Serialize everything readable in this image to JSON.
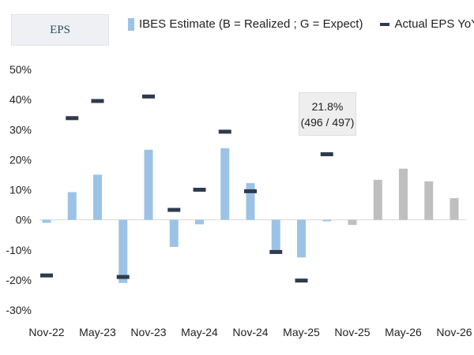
{
  "header": {
    "title": "EPS"
  },
  "legend": {
    "bar_label": "IBES Estimate (B = Realized ; G = Expect)",
    "dash_label": "Actual EPS YoY"
  },
  "annotation": {
    "line1": "21.8%",
    "line2": "(496 / 497)"
  },
  "colors": {
    "realized": "#9cc3e6",
    "expected": "#bfbfbf",
    "actual": "#2e3b4e"
  },
  "chart_data": {
    "type": "bar",
    "title": "EPS",
    "ylim": [
      -30,
      50
    ],
    "yticks": [
      50,
      40,
      30,
      20,
      10,
      0,
      -10,
      -20,
      -30
    ],
    "ytick_labels": [
      "50%",
      "40%",
      "30%",
      "20%",
      "10%",
      "0%",
      "-10%",
      "-20%",
      "-30%"
    ],
    "x_tick_labels": [
      "Nov-22",
      "May-23",
      "Nov-23",
      "May-24",
      "Nov-24",
      "May-25",
      "Nov-25",
      "May-26",
      "Nov-26"
    ],
    "x_tick_index": [
      0,
      2,
      4,
      6,
      8,
      10,
      12,
      14,
      16
    ],
    "categories": [
      "Nov-22",
      "Feb-23",
      "May-23",
      "Aug-23",
      "Nov-23",
      "Feb-24",
      "May-24",
      "Aug-24",
      "Nov-24",
      "Feb-25",
      "May-25",
      "Aug-25",
      "Nov-25",
      "Feb-26",
      "May-26",
      "Aug-26",
      "Nov-26"
    ],
    "series": [
      {
        "name": "IBES Estimate (B = Realized ; G = Expect)",
        "kind": "bar",
        "values": [
          -1,
          9.2,
          15,
          -21,
          23.3,
          -9,
          -1.5,
          23.8,
          12.2,
          -10.7,
          -12.5,
          -0.5,
          -1.7,
          13.3,
          17,
          12.8,
          7.2
        ],
        "status": [
          "realized",
          "realized",
          "realized",
          "realized",
          "realized",
          "realized",
          "realized",
          "realized",
          "realized",
          "realized",
          "realized",
          "realized",
          "expected",
          "expected",
          "expected",
          "expected",
          "expected"
        ]
      },
      {
        "name": "Actual EPS YoY",
        "kind": "dash",
        "values": [
          -18.5,
          33.8,
          39.5,
          -19,
          41,
          3.3,
          10,
          29.3,
          9.5,
          -10.7,
          -20.2,
          21.8,
          null,
          null,
          null,
          null,
          null
        ]
      }
    ],
    "grid": false,
    "legend_position": "top"
  }
}
